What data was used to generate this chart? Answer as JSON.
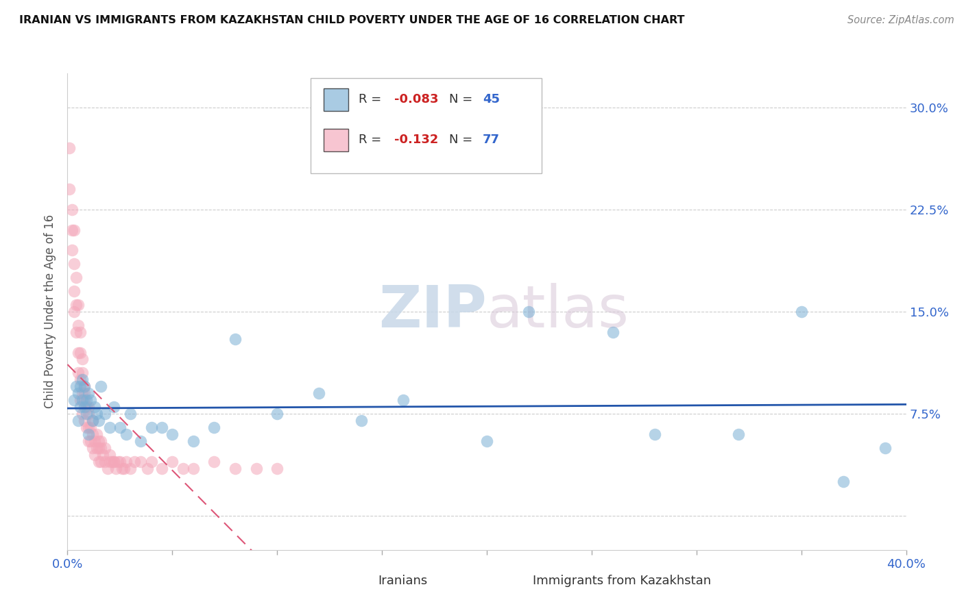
{
  "title": "IRANIAN VS IMMIGRANTS FROM KAZAKHSTAN CHILD POVERTY UNDER THE AGE OF 16 CORRELATION CHART",
  "source": "Source: ZipAtlas.com",
  "label_iranians": "Iranians",
  "label_kazakhstan": "Immigrants from Kazakhstan",
  "ylabel": "Child Poverty Under the Age of 16",
  "xmin": 0.0,
  "xmax": 0.4,
  "ymin": -0.025,
  "ymax": 0.325,
  "yticks": [
    0.0,
    0.075,
    0.15,
    0.225,
    0.3
  ],
  "ytick_labels": [
    "",
    "7.5%",
    "15.0%",
    "22.5%",
    "30.0%"
  ],
  "xticks": [
    0.0,
    0.05,
    0.1,
    0.15,
    0.2,
    0.25,
    0.3,
    0.35,
    0.4
  ],
  "xtick_labels": [
    "0.0%",
    "",
    "",
    "",
    "",
    "",
    "",
    "",
    "40.0%"
  ],
  "r1": "-0.083",
  "n1": "45",
  "r2": "-0.132",
  "n2": "77",
  "color_blue": "#7BAFD4",
  "color_pink": "#F4A7B9",
  "color_blue_line": "#2255AA",
  "color_pink_line": "#DD5577",
  "color_r_value": "#CC2222",
  "color_n_value": "#3366CC",
  "color_axis_label": "#555555",
  "color_tick": "#3366CC",
  "color_source": "#888888",
  "color_grid": "#CCCCCC",
  "iranians_x": [
    0.003,
    0.004,
    0.005,
    0.005,
    0.006,
    0.006,
    0.007,
    0.007,
    0.008,
    0.008,
    0.009,
    0.009,
    0.01,
    0.01,
    0.011,
    0.012,
    0.013,
    0.014,
    0.015,
    0.016,
    0.018,
    0.02,
    0.022,
    0.025,
    0.028,
    0.03,
    0.035,
    0.04,
    0.045,
    0.05,
    0.06,
    0.07,
    0.08,
    0.1,
    0.12,
    0.14,
    0.16,
    0.2,
    0.22,
    0.26,
    0.28,
    0.32,
    0.35,
    0.37,
    0.39
  ],
  "iranians_y": [
    0.085,
    0.095,
    0.07,
    0.09,
    0.08,
    0.095,
    0.085,
    0.1,
    0.08,
    0.095,
    0.075,
    0.085,
    0.09,
    0.06,
    0.085,
    0.07,
    0.08,
    0.075,
    0.07,
    0.095,
    0.075,
    0.065,
    0.08,
    0.065,
    0.06,
    0.075,
    0.055,
    0.065,
    0.065,
    0.06,
    0.055,
    0.065,
    0.13,
    0.075,
    0.09,
    0.07,
    0.085,
    0.055,
    0.15,
    0.135,
    0.06,
    0.06,
    0.15,
    0.025,
    0.05
  ],
  "kazakhstan_x": [
    0.001,
    0.001,
    0.002,
    0.002,
    0.002,
    0.003,
    0.003,
    0.003,
    0.003,
    0.004,
    0.004,
    0.004,
    0.005,
    0.005,
    0.005,
    0.005,
    0.006,
    0.006,
    0.006,
    0.006,
    0.007,
    0.007,
    0.007,
    0.007,
    0.008,
    0.008,
    0.008,
    0.009,
    0.009,
    0.01,
    0.01,
    0.01,
    0.011,
    0.011,
    0.012,
    0.012,
    0.013,
    0.013,
    0.014,
    0.015,
    0.015,
    0.016,
    0.016,
    0.017,
    0.018,
    0.019,
    0.02,
    0.021,
    0.022,
    0.023,
    0.024,
    0.025,
    0.026,
    0.027,
    0.028,
    0.03,
    0.032,
    0.035,
    0.038,
    0.04,
    0.045,
    0.05,
    0.055,
    0.06,
    0.07,
    0.08,
    0.09,
    0.1,
    0.015,
    0.018,
    0.02,
    0.022,
    0.008,
    0.01,
    0.012,
    0.014,
    0.016
  ],
  "kazakhstan_y": [
    0.27,
    0.24,
    0.225,
    0.21,
    0.195,
    0.21,
    0.185,
    0.165,
    0.15,
    0.175,
    0.155,
    0.135,
    0.155,
    0.14,
    0.12,
    0.105,
    0.135,
    0.12,
    0.1,
    0.085,
    0.115,
    0.105,
    0.09,
    0.075,
    0.095,
    0.085,
    0.07,
    0.08,
    0.065,
    0.075,
    0.065,
    0.055,
    0.065,
    0.055,
    0.06,
    0.05,
    0.055,
    0.045,
    0.05,
    0.05,
    0.04,
    0.05,
    0.04,
    0.045,
    0.04,
    0.035,
    0.045,
    0.04,
    0.04,
    0.035,
    0.04,
    0.04,
    0.035,
    0.035,
    0.04,
    0.035,
    0.04,
    0.04,
    0.035,
    0.04,
    0.035,
    0.04,
    0.035,
    0.035,
    0.04,
    0.035,
    0.035,
    0.035,
    0.055,
    0.05,
    0.04,
    0.04,
    0.09,
    0.08,
    0.07,
    0.06,
    0.055
  ]
}
